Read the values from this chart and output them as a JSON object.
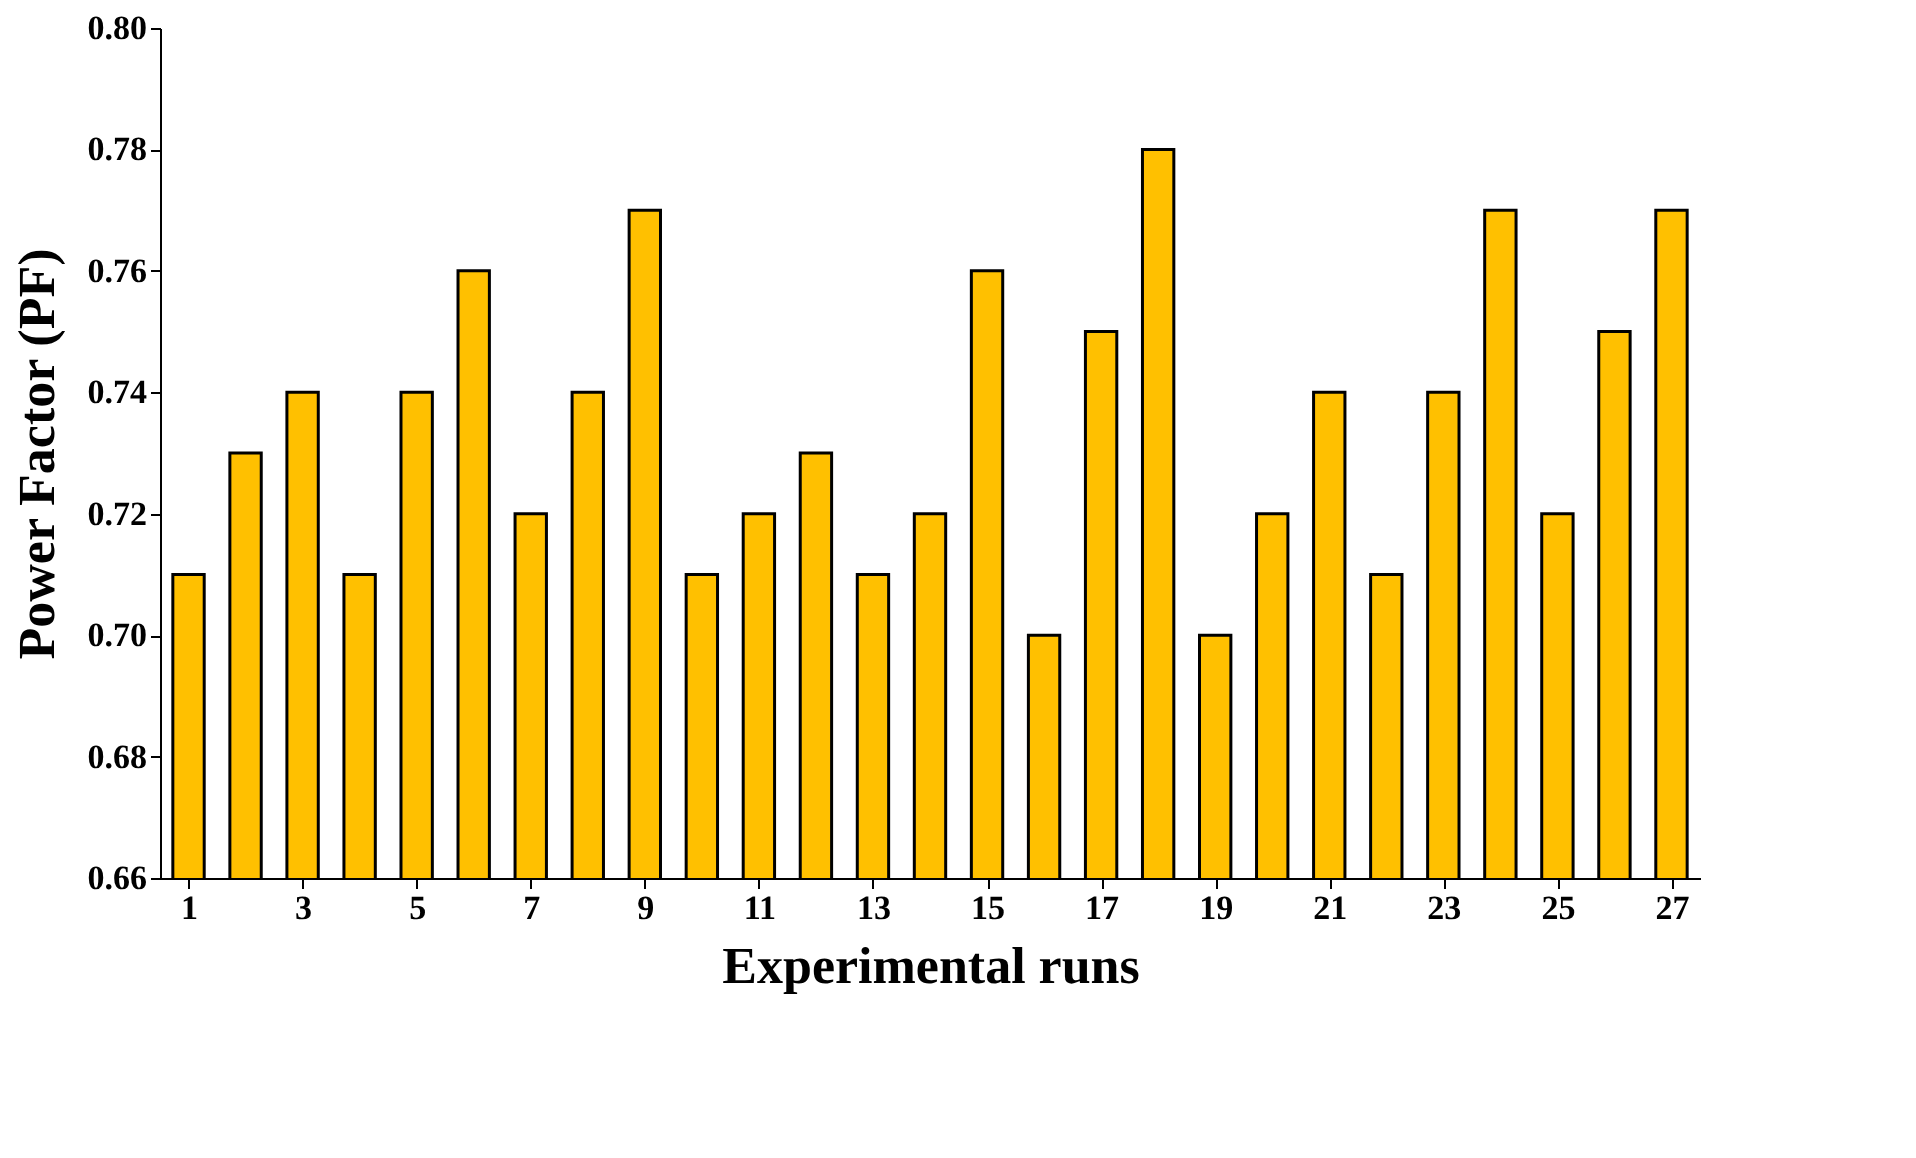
{
  "chart_data": {
    "type": "bar",
    "xlabel": "Experimental runs",
    "ylabel": "Power Factor (PF)",
    "x": [
      1,
      2,
      3,
      4,
      5,
      6,
      7,
      8,
      9,
      10,
      11,
      12,
      13,
      14,
      15,
      16,
      17,
      18,
      19,
      20,
      21,
      22,
      23,
      24,
      25,
      26,
      27
    ],
    "xlim": [
      0.5,
      27.5
    ],
    "xticks": [
      1,
      3,
      5,
      7,
      9,
      11,
      13,
      15,
      17,
      19,
      21,
      23,
      25,
      27
    ],
    "values": [
      0.71,
      0.73,
      0.74,
      0.71,
      0.74,
      0.76,
      0.72,
      0.74,
      0.77,
      0.71,
      0.72,
      0.73,
      0.71,
      0.72,
      0.76,
      0.7,
      0.75,
      0.78,
      0.7,
      0.72,
      0.74,
      0.71,
      0.74,
      0.77,
      0.72,
      0.75,
      0.77
    ],
    "color": "#ffc000",
    "ylim": [
      0.66,
      0.8
    ],
    "yticks": [
      {
        "value": 0.66,
        "label": "0.66"
      },
      {
        "value": 0.68,
        "label": "0.68"
      },
      {
        "value": 0.7,
        "label": "0.70"
      },
      {
        "value": 0.72,
        "label": "0.72"
      },
      {
        "value": 0.74,
        "label": "0.74"
      },
      {
        "value": 0.76,
        "label": "0.76"
      },
      {
        "value": 0.78,
        "label": "0.78"
      },
      {
        "value": 0.8,
        "label": "0.80"
      }
    ],
    "grid": false
  }
}
